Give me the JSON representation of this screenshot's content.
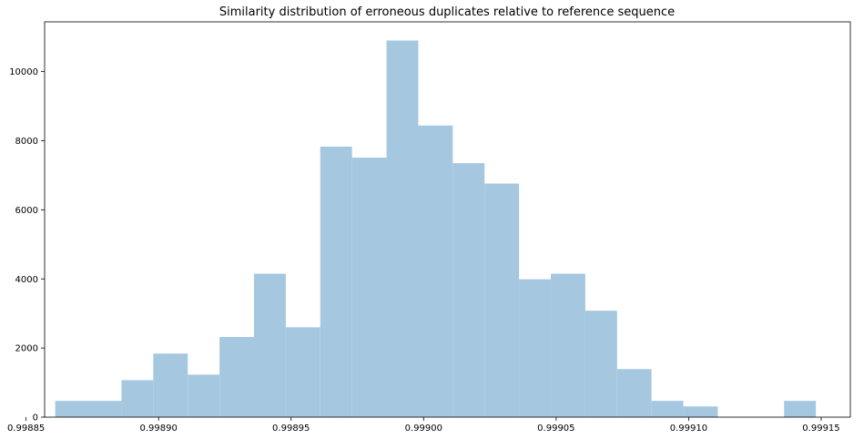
{
  "chart_data": {
    "type": "bar",
    "title": "Similarity distribution of erroneous duplicates relative to reference sequence",
    "xlabel": "",
    "ylabel": "",
    "bar_color": "#a5c8e0",
    "bins": [
      {
        "start": 0.998861,
        "end": 0.998886,
        "count": 470
      },
      {
        "start": 0.998886,
        "end": 0.998898,
        "count": 1070
      },
      {
        "start": 0.998898,
        "end": 0.998911,
        "count": 1840
      },
      {
        "start": 0.998911,
        "end": 0.998923,
        "count": 1230
      },
      {
        "start": 0.998923,
        "end": 0.998936,
        "count": 2320
      },
      {
        "start": 0.998936,
        "end": 0.998948,
        "count": 4150
      },
      {
        "start": 0.998948,
        "end": 0.998961,
        "count": 2600
      },
      {
        "start": 0.998961,
        "end": 0.998973,
        "count": 7830
      },
      {
        "start": 0.998973,
        "end": 0.998986,
        "count": 7510
      },
      {
        "start": 0.998986,
        "end": 0.998998,
        "count": 10900
      },
      {
        "start": 0.998998,
        "end": 0.999011,
        "count": 8440
      },
      {
        "start": 0.999011,
        "end": 0.999023,
        "count": 7350
      },
      {
        "start": 0.999023,
        "end": 0.999036,
        "count": 6760
      },
      {
        "start": 0.999036,
        "end": 0.999048,
        "count": 3990
      },
      {
        "start": 0.999048,
        "end": 0.999061,
        "count": 4150
      },
      {
        "start": 0.999061,
        "end": 0.999073,
        "count": 3080
      },
      {
        "start": 0.999073,
        "end": 0.999086,
        "count": 1390
      },
      {
        "start": 0.999086,
        "end": 0.999098,
        "count": 470
      },
      {
        "start": 0.999098,
        "end": 0.999111,
        "count": 310
      },
      {
        "start": 0.999136,
        "end": 0.999148,
        "count": 470
      }
    ],
    "xlim": [
      0.998857,
      0.999161
    ],
    "ylim": [
      0,
      11440
    ],
    "x_ticks": [
      0.99885,
      0.9989,
      0.99895,
      0.999,
      0.99905,
      0.9991,
      0.99915
    ],
    "x_tick_labels": [
      "0.99885",
      "0.99890",
      "0.99895",
      "0.99900",
      "0.99905",
      "0.99910",
      "0.99915"
    ],
    "y_ticks": [
      0,
      2000,
      4000,
      6000,
      8000,
      10000
    ],
    "y_tick_labels": [
      "0",
      "2000",
      "4000",
      "6000",
      "8000",
      "10000"
    ],
    "grid": false,
    "legend": "none"
  }
}
